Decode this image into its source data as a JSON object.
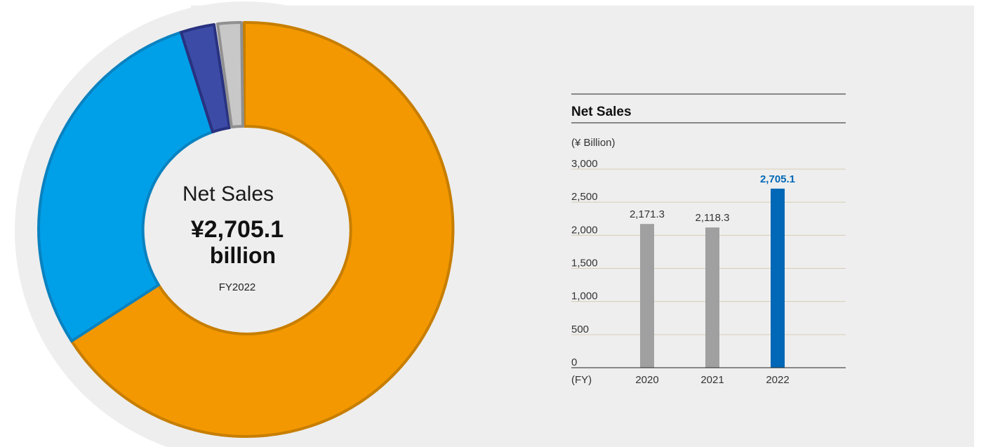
{
  "donut": {
    "center_title": "Net Sales",
    "center_value": "¥2,705.1",
    "center_unit": "billion",
    "center_year": "FY2022",
    "colors": {
      "orange_fill": "#f39800",
      "orange_stroke": "#c77e00",
      "blue_fill": "#00a0e9",
      "blue_stroke": "#0a82c0",
      "navy_fill": "#3c4ba6",
      "navy_stroke": "#283280",
      "gray_fill": "#c8c8c8",
      "gray_stroke": "#909090"
    }
  },
  "chart_data": {
    "type": "bar",
    "title": "Net Sales",
    "ylabel": "(¥ Billion)",
    "xlabel": "(FY)",
    "categories": [
      "2020",
      "2021",
      "2022"
    ],
    "values": [
      2171.3,
      2118.3,
      2705.1
    ],
    "value_labels": [
      "2,171.3",
      "2,118.3",
      "2,705.1"
    ],
    "ylim": [
      0,
      3000
    ],
    "yticks": [
      0,
      500,
      1000,
      1500,
      2000,
      2500,
      3000
    ],
    "ytick_labels": [
      "0",
      "500",
      "1,000",
      "1,500",
      "2,000",
      "2,500",
      "3,000"
    ],
    "grid": true,
    "bar_colors": [
      "#a0a0a0",
      "#a0a0a0",
      "#0068b7"
    ],
    "label_colors": [
      "#333333",
      "#333333",
      "#0068b7"
    ],
    "highlight_index": 2
  }
}
